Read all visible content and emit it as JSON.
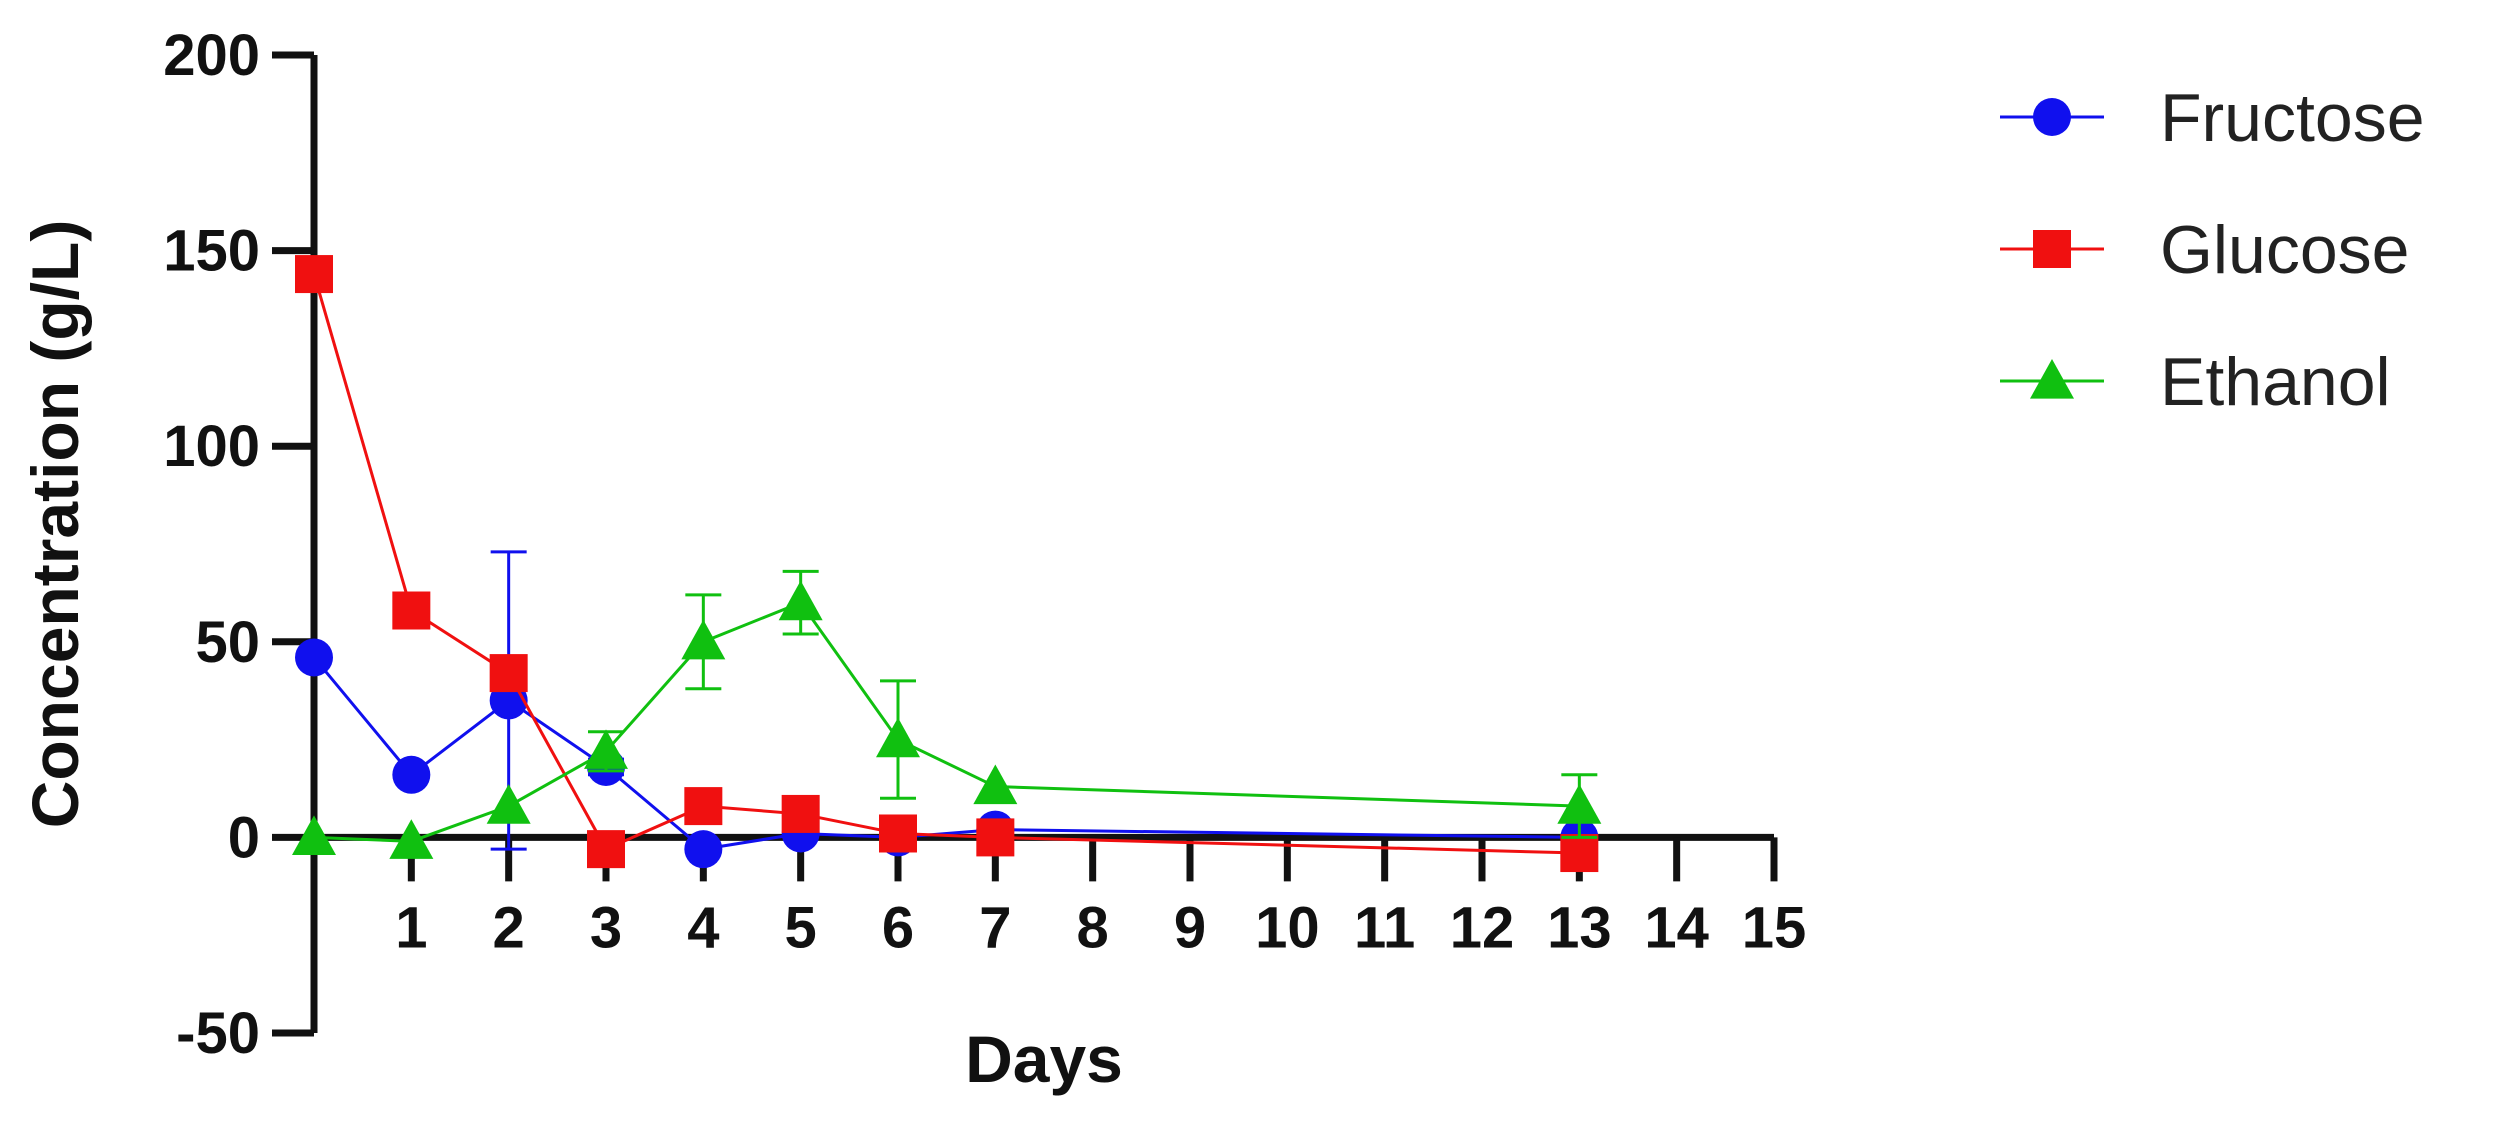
{
  "chart_data": {
    "type": "line",
    "title": "",
    "xlabel": "Days",
    "ylabel": "Concentration (g/L)",
    "xlim": [
      0,
      15
    ],
    "ylim": [
      -50,
      200
    ],
    "x_ticks": [
      1,
      2,
      3,
      4,
      5,
      6,
      7,
      8,
      9,
      10,
      11,
      12,
      13,
      14,
      15
    ],
    "y_ticks": [
      -50,
      0,
      50,
      100,
      150,
      200
    ],
    "x_tick_labels": [
      "1",
      "2",
      "3",
      "4",
      "5",
      "6",
      "7",
      "8",
      "9",
      "10",
      "11",
      "12",
      "13",
      "14",
      "15"
    ],
    "y_tick_labels": [
      "-50",
      "0",
      "50",
      "100",
      "150",
      "200"
    ],
    "grid": false,
    "legend_position": "right",
    "series": [
      {
        "name": "Fructose",
        "color": "#1010ee",
        "marker": "circle",
        "points": [
          {
            "x": 0,
            "y": 46,
            "err": 0
          },
          {
            "x": 1,
            "y": 16,
            "err": 0
          },
          {
            "x": 2,
            "y": 35,
            "err": 38
          },
          {
            "x": 3,
            "y": 18,
            "err": 2
          },
          {
            "x": 4,
            "y": -3,
            "err": 0
          },
          {
            "x": 5,
            "y": 1,
            "err": 0
          },
          {
            "x": 6,
            "y": 0,
            "err": 0
          },
          {
            "x": 7,
            "y": 2,
            "err": 0
          },
          {
            "x": 13,
            "y": 0,
            "err": 0
          }
        ]
      },
      {
        "name": "Glucose",
        "color": "#f01010",
        "marker": "square",
        "points": [
          {
            "x": 0,
            "y": 144,
            "err": 0
          },
          {
            "x": 1,
            "y": 58,
            "err": 0
          },
          {
            "x": 2,
            "y": 42,
            "err": 0
          },
          {
            "x": 3,
            "y": -3,
            "err": 0
          },
          {
            "x": 4,
            "y": 8,
            "err": 0
          },
          {
            "x": 5,
            "y": 6,
            "err": 0
          },
          {
            "x": 6,
            "y": 1,
            "err": 0
          },
          {
            "x": 7,
            "y": 0,
            "err": 0
          },
          {
            "x": 13,
            "y": -4,
            "err": 0
          }
        ]
      },
      {
        "name": "Ethanol",
        "color": "#10c010",
        "marker": "triangle",
        "points": [
          {
            "x": 0,
            "y": 0,
            "err": 0
          },
          {
            "x": 1,
            "y": -1,
            "err": 0
          },
          {
            "x": 2,
            "y": 8,
            "err": 0
          },
          {
            "x": 3,
            "y": 22,
            "err": 5
          },
          {
            "x": 4,
            "y": 50,
            "err": 12
          },
          {
            "x": 5,
            "y": 60,
            "err": 8
          },
          {
            "x": 6,
            "y": 25,
            "err": 15
          },
          {
            "x": 7,
            "y": 13,
            "err": 0
          },
          {
            "x": 13,
            "y": 8,
            "err": 8
          }
        ]
      }
    ]
  }
}
